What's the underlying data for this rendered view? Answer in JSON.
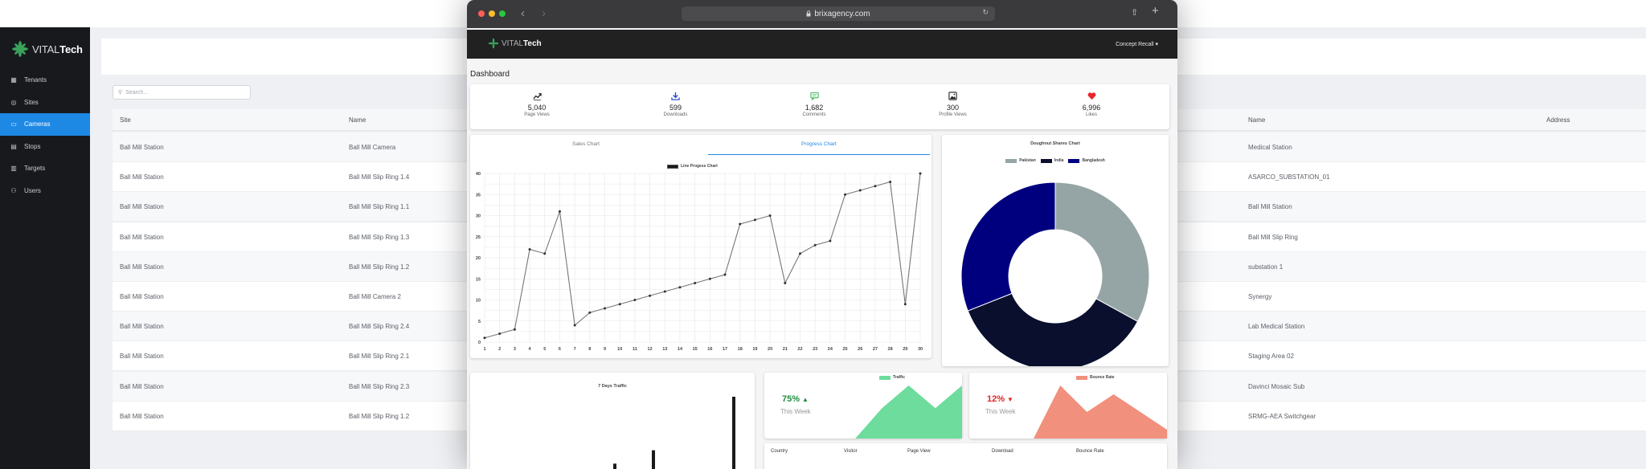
{
  "background_app": {
    "logo": {
      "prefix": "VITAL",
      "suffix": "Tech"
    },
    "nav": [
      {
        "label": "Tenants",
        "icon": "building-icon",
        "active": false
      },
      {
        "label": "Sites",
        "icon": "location-icon",
        "active": false
      },
      {
        "label": "Cameras",
        "icon": "camera-icon",
        "active": true
      },
      {
        "label": "Stops",
        "icon": "stop-icon",
        "active": false
      },
      {
        "label": "Targets",
        "icon": "target-icon",
        "active": false
      },
      {
        "label": "Users",
        "icon": "user-icon",
        "active": false
      }
    ],
    "search_placeholder": "Search...",
    "columns": {
      "site": "Site",
      "name": "Name",
      "name2": "Name",
      "address": "Address"
    },
    "rows": [
      {
        "site": "Ball Mill Station",
        "name": "Ball Mill Camera",
        "name2": "Medical Station"
      },
      {
        "site": "Ball Mill Station",
        "name": "Ball Mill Slip Ring 1.4",
        "name2": "ASARCO_SUBSTATION_01"
      },
      {
        "site": "Ball Mill Station",
        "name": "Ball Mill Slip Ring 1.1",
        "name2": "Ball Mill Station"
      },
      {
        "site": "Ball Mill Station",
        "name": "Ball Mill Slip Ring 1.3",
        "name2": "Ball Mill Slip Ring"
      },
      {
        "site": "Ball Mill Station",
        "name": "Ball Mill Slip Ring 1.2",
        "name2": "substation 1"
      },
      {
        "site": "Ball Mill Station",
        "name": "Ball Mill Camera 2",
        "name2": "Synergy"
      },
      {
        "site": "Ball Mill Station",
        "name": "Ball Mill Slip Ring 2.4",
        "name2": "Lab Medical Station"
      },
      {
        "site": "Ball Mill Station",
        "name": "Ball Mill Slip Ring 2.1",
        "name2": "Staging Area 02"
      },
      {
        "site": "Ball Mill Station",
        "name": "Ball Mill Slip Ring 2.3",
        "name2": "Davinci Mosaic Sub"
      },
      {
        "site": "Ball Mill Station",
        "name": "Ball Mill Slip Ring 1.2",
        "name2": "SRMG-AEA Switchgear"
      }
    ]
  },
  "browser": {
    "url": "brixagency.com",
    "traffic_colors": [
      "#ff5f57",
      "#febc2e",
      "#28c840"
    ]
  },
  "app": {
    "logo": {
      "prefix": "VITAL",
      "suffix": "Tech"
    },
    "user_menu": "Concept Recall ▾",
    "dashboard_title": "Dashboard",
    "stats": [
      {
        "value": "5,040",
        "label": "Page Views",
        "icon": "trending-up-icon",
        "color": "#222222"
      },
      {
        "value": "599",
        "label": "Downloads",
        "icon": "download-icon",
        "color": "#1a3fd1"
      },
      {
        "value": "1,682",
        "label": "Comments",
        "icon": "comment-icon",
        "color": "#3bb85a"
      },
      {
        "value": "300",
        "label": "Profile Views",
        "icon": "image-icon",
        "color": "#222222"
      },
      {
        "value": "6,996",
        "label": "Likes",
        "icon": "heart-icon",
        "color": "#e8262b"
      }
    ],
    "tabs": {
      "sales": "Sales Chart",
      "progress": "Progress Chart"
    },
    "traffic_card": {
      "percent": "75%",
      "period": "This Week",
      "color": "#1e8e3e"
    },
    "bounce_card": {
      "percent": "12%",
      "period": "This Week",
      "color": "#e02424"
    },
    "bottom_table_headers": [
      "Country",
      "Visitor",
      "Page View",
      "Download",
      "Bounce Rate"
    ]
  },
  "chart_data": [
    {
      "type": "line",
      "legend": "Line Progess Chart",
      "x": [
        1,
        2,
        3,
        4,
        5,
        6,
        7,
        8,
        9,
        10,
        11,
        12,
        13,
        14,
        15,
        16,
        17,
        18,
        19,
        20,
        21,
        22,
        23,
        24,
        25,
        26,
        27,
        28,
        29,
        30
      ],
      "series": [
        {
          "name": "Line Progess Chart",
          "values": [
            1,
            2,
            3,
            22,
            21,
            31,
            4,
            7,
            8,
            9,
            10,
            11,
            12,
            13,
            14,
            15,
            16,
            28,
            29,
            30,
            14,
            21,
            23,
            24,
            35,
            36,
            37,
            38,
            9,
            40
          ]
        }
      ],
      "ylim": [
        0,
        40
      ],
      "yticks": [
        0,
        5,
        10,
        15,
        20,
        25,
        30,
        35,
        40
      ],
      "grid": true,
      "color": "#777777"
    },
    {
      "type": "pie",
      "title": "Doughnut Shares Chart",
      "labels": [
        "Pakistan",
        "India",
        "Bangladesh"
      ],
      "values": [
        33,
        36,
        31
      ],
      "colors": [
        "#95a5a6",
        "#0a0f2e",
        "#00007f"
      ],
      "legend": "top"
    },
    {
      "type": "bar",
      "title": "7 Days Traffic",
      "values": [
        0,
        0,
        0,
        0,
        10,
        20,
        60
      ],
      "color": "#1a1a1a"
    },
    {
      "type": "area",
      "legend": "Traffic",
      "values": [
        0,
        0,
        20,
        35,
        20,
        35
      ],
      "color": "#6ddc9d"
    },
    {
      "type": "area",
      "legend": "Bounce Rate",
      "values": [
        0,
        30,
        15,
        25,
        15,
        5
      ],
      "color": "#f1907d"
    }
  ]
}
